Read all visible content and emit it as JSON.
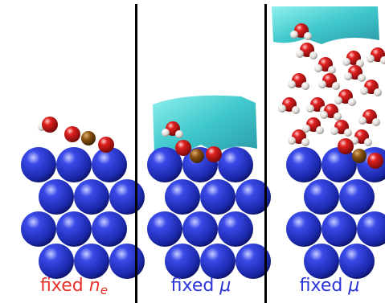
{
  "panels": [
    {
      "label": "fixed",
      "symbol": "n",
      "subscript": "e"
    },
    {
      "label": "fixed",
      "symbol": "μ"
    },
    {
      "label": "fixed",
      "symbol": "μ"
    }
  ]
}
